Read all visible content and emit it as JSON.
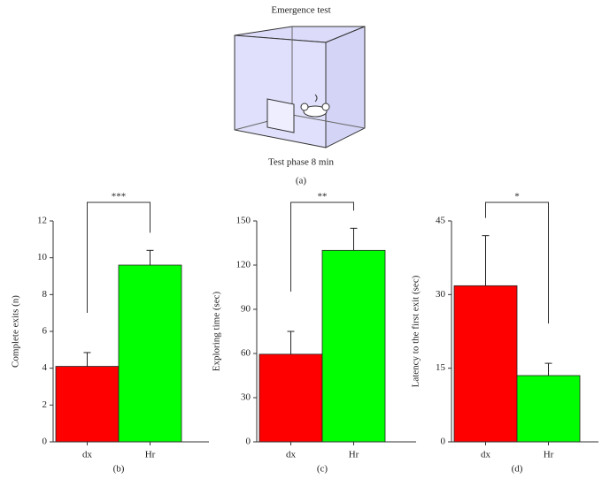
{
  "diagram": {
    "title": "Emergence test",
    "caption": "Test phase 8 min",
    "label": "(a)"
  },
  "chart_data": [
    {
      "type": "bar",
      "y_label": "Complete exits (n)",
      "panel_label": "(b)",
      "significance": "***",
      "categories": [
        "dx",
        "Hr"
      ],
      "values": [
        4.1,
        9.6
      ],
      "errors": [
        0.75,
        0.8
      ],
      "colors": [
        "#ff0000",
        "#00ff00"
      ],
      "ylim": [
        0,
        12
      ],
      "yticks": [
        0,
        2,
        4,
        6,
        8,
        10,
        12
      ]
    },
    {
      "type": "bar",
      "y_label": "Exploring time (sec)",
      "panel_label": "(c)",
      "significance": "**",
      "categories": [
        "dx",
        "Hr"
      ],
      "values": [
        59.5,
        130
      ],
      "errors": [
        15.5,
        15
      ],
      "colors": [
        "#ff0000",
        "#00ff00"
      ],
      "ylim": [
        0,
        150
      ],
      "yticks": [
        0,
        30,
        60,
        90,
        120,
        150
      ]
    },
    {
      "type": "bar",
      "y_label": "Latency to the first exit (sec)",
      "panel_label": "(d)",
      "significance": "*",
      "categories": [
        "dx",
        "Hr"
      ],
      "values": [
        31.8,
        13.5
      ],
      "errors": [
        10.2,
        2.5
      ],
      "colors": [
        "#ff0000",
        "#00ff00"
      ],
      "ylim": [
        0,
        45
      ],
      "yticks": [
        0,
        15,
        30,
        45
      ]
    }
  ]
}
